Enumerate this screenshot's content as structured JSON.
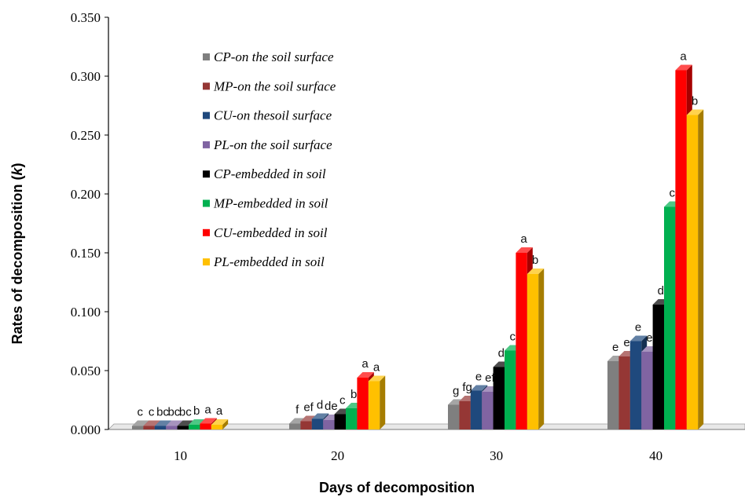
{
  "chart_data": {
    "type": "bar",
    "xlabel": "Days of decomposition",
    "ylabel": "Rates of decomposition (",
    "ylabel_var": "k",
    "ylabel_close": ")",
    "ylim": [
      0,
      0.35
    ],
    "yticks": [
      "0.000",
      "0.050",
      "0.100",
      "0.150",
      "0.200",
      "0.250",
      "0.300",
      "0.350"
    ],
    "categories": [
      "10",
      "20",
      "30",
      "40"
    ],
    "legend_position": "top-left",
    "series": [
      {
        "name": "CP-on the soil surface",
        "color": "#7f7f7f",
        "values": [
          0.003,
          0.005,
          0.021,
          0.058
        ],
        "letters": [
          "c",
          "f",
          "g",
          "e"
        ]
      },
      {
        "name": "MP-on the soil surface",
        "color": "#953735",
        "values": [
          0.003,
          0.007,
          0.024,
          0.062
        ],
        "letters": [
          "c",
          "ef",
          "fg",
          "e"
        ]
      },
      {
        "name": "CU-on thesoil surface",
        "color": "#1f497d",
        "values": [
          0.003,
          0.009,
          0.033,
          0.075
        ],
        "letters": [
          "bc",
          "d",
          "e",
          "e"
        ]
      },
      {
        "name": "PL-on the soil surface",
        "color": "#8064a2",
        "values": [
          0.003,
          0.008,
          0.032,
          0.066
        ],
        "letters": [
          "bc",
          "de",
          "ef",
          "e"
        ]
      },
      {
        "name": "CP-embedded in soil",
        "color": "#000000",
        "values": [
          0.003,
          0.013,
          0.053,
          0.106
        ],
        "letters": [
          "bc",
          "c",
          "d",
          "d"
        ]
      },
      {
        "name": "MP-embedded in soil",
        "color": "#00b050",
        "values": [
          0.004,
          0.018,
          0.067,
          0.189
        ],
        "letters": [
          "b",
          "b",
          "c",
          "c"
        ]
      },
      {
        "name": "CU-embedded in soil",
        "color": "#ff0000",
        "values": [
          0.005,
          0.044,
          0.15,
          0.305
        ],
        "letters": [
          "a",
          "a",
          "a",
          "a"
        ]
      },
      {
        "name": "PL-embedded in soil",
        "color": "#ffc000",
        "values": [
          0.004,
          0.041,
          0.132,
          0.267
        ],
        "letters": [
          "a",
          "a",
          "b",
          "b"
        ]
      }
    ]
  }
}
